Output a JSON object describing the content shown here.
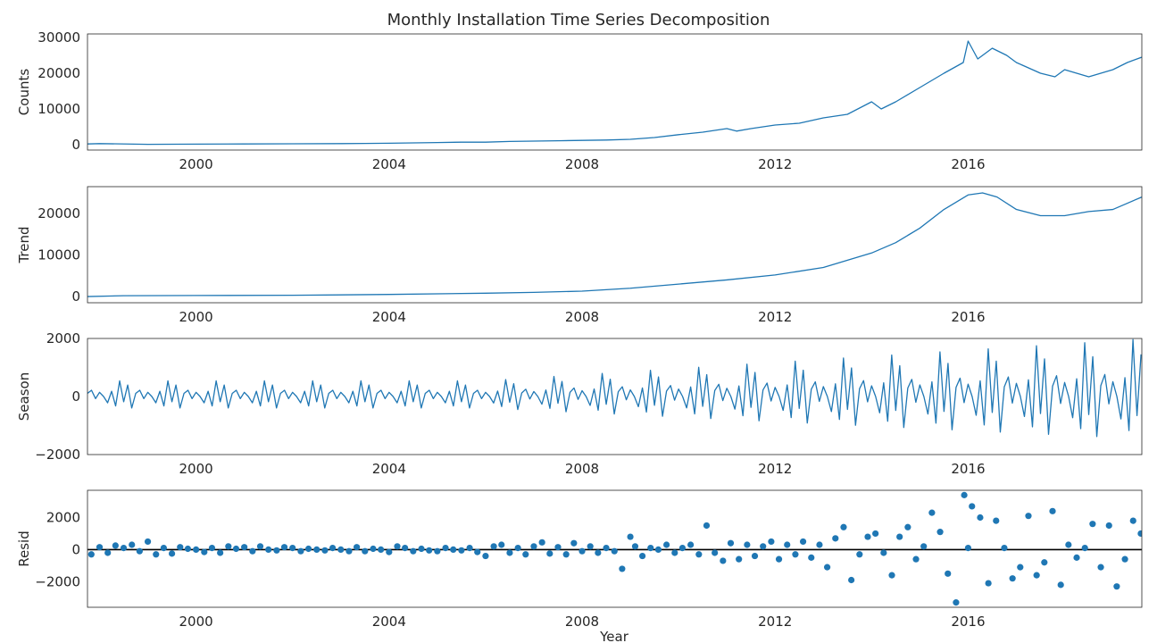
{
  "figure": {
    "title": "Monthly Installation Time Series Decomposition",
    "xlabel": "Year",
    "line_color": "#1f77b4",
    "zero_line_color": "#000000"
  },
  "chart_data": [
    {
      "type": "line",
      "ylabel": "Counts",
      "xlim": [
        1997.75,
        2019.6
      ],
      "ylim": [
        -1500,
        31000
      ],
      "yticks": [
        0,
        10000,
        20000,
        30000
      ],
      "ytick_labels": [
        "0",
        "10000",
        "20000",
        "30000"
      ],
      "xticks": [
        2000,
        2004,
        2008,
        2012,
        2016
      ],
      "xtick_labels": [
        "2000",
        "2004",
        "2008",
        "2012",
        "2016"
      ],
      "grid": false,
      "series": [
        {
          "x": [
            1997.75,
            1998.0,
            1999.0,
            2000.0,
            2001.0,
            2002.0,
            2003.0,
            2003.5,
            2004.0,
            2004.5,
            2005.0,
            2005.5,
            2006.0,
            2006.5,
            2007.0,
            2007.5,
            2008.0,
            2008.5,
            2009.0,
            2009.5,
            2010.0,
            2010.5,
            2011.0,
            2011.2,
            2011.5,
            2012.0,
            2012.5,
            2013.0,
            2013.5,
            2014.0,
            2014.2,
            2014.5,
            2015.0,
            2015.5,
            2015.9,
            2016.0,
            2016.2,
            2016.5,
            2016.8,
            2017.0,
            2017.5,
            2017.8,
            2018.0,
            2018.5,
            2019.0,
            2019.3,
            2019.6
          ],
          "y": [
            200,
            300,
            100,
            150,
            200,
            250,
            300,
            350,
            400,
            500,
            600,
            700,
            700,
            900,
            1000,
            1100,
            1200,
            1300,
            1500,
            2000,
            2800,
            3500,
            4500,
            3800,
            4500,
            5500,
            6000,
            7500,
            8500,
            12000,
            10000,
            12000,
            16000,
            20000,
            23000,
            29000,
            24000,
            27000,
            25000,
            23000,
            20000,
            19000,
            21000,
            19000,
            21000,
            23000,
            24500
          ]
        }
      ]
    },
    {
      "type": "line",
      "ylabel": "Trend",
      "xlim": [
        1997.75,
        2019.6
      ],
      "ylim": [
        -1500,
        26500
      ],
      "yticks": [
        0,
        10000,
        20000
      ],
      "ytick_labels": [
        "0",
        "10000",
        "20000"
      ],
      "xticks": [
        2000,
        2004,
        2008,
        2012,
        2016
      ],
      "xtick_labels": [
        "2000",
        "2004",
        "2008",
        "2012",
        "2016"
      ],
      "grid": false,
      "series": [
        {
          "x": [
            1997.75,
            1998.5,
            2000.0,
            2002.0,
            2004.0,
            2006.0,
            2007.0,
            2008.0,
            2009.0,
            2010.0,
            2011.0,
            2012.0,
            2013.0,
            2014.0,
            2014.5,
            2015.0,
            2015.5,
            2016.0,
            2016.3,
            2016.6,
            2017.0,
            2017.5,
            2018.0,
            2018.5,
            2019.0,
            2019.6
          ],
          "y": [
            0,
            200,
            250,
            300,
            500,
            800,
            1000,
            1300,
            2000,
            3000,
            4000,
            5200,
            7000,
            10500,
            13000,
            16500,
            21000,
            24500,
            25000,
            24000,
            21000,
            19500,
            19500,
            20500,
            21000,
            24000
          ]
        }
      ]
    },
    {
      "type": "line",
      "ylabel": "Season",
      "xlim": [
        1997.75,
        2019.6
      ],
      "ylim": [
        -2000,
        2000
      ],
      "yticks": [
        -2000,
        0,
        2000
      ],
      "ytick_labels": [
        "−2000",
        "0",
        "2000"
      ],
      "xticks": [
        2000,
        2004,
        2008,
        2012,
        2016
      ],
      "xtick_labels": [
        "2000",
        "2004",
        "2008",
        "2012",
        "2016"
      ],
      "grid": false,
      "monthly_pattern": [
        0.12,
        0.24,
        -0.08,
        0.16,
        0.0,
        -0.24,
        0.2,
        -0.36,
        0.6,
        -0.2,
        0.44,
        -0.44
      ],
      "start_amplitude": 900,
      "end_amplitude": 3300,
      "amplitude_growth_start_year": 2006,
      "series": [
        {
          "x": [
            1997.75,
            2019.6
          ],
          "y": [
            0,
            0
          ]
        }
      ]
    },
    {
      "type": "scatter",
      "ylabel": "Resid",
      "xlim": [
        1997.75,
        2019.6
      ],
      "ylim": [
        -3600,
        3700
      ],
      "yticks": [
        -2000,
        0,
        2000
      ],
      "ytick_labels": [
        "−2000",
        "0",
        "2000"
      ],
      "xticks": [
        2000,
        2004,
        2008,
        2012,
        2016
      ],
      "xtick_labels": [
        "2000",
        "2004",
        "2008",
        "2012",
        "2016"
      ],
      "grid": false,
      "zero_line": true,
      "series": [
        {
          "x": [
            1997.83,
            1998.0,
            1998.17,
            1998.33,
            1998.5,
            1998.67,
            1998.83,
            1999.0,
            1999.17,
            1999.33,
            1999.5,
            1999.67,
            1999.83,
            2000.0,
            2000.17,
            2000.33,
            2000.5,
            2000.67,
            2000.83,
            2001.0,
            2001.17,
            2001.33,
            2001.5,
            2001.67,
            2001.83,
            2002.0,
            2002.17,
            2002.33,
            2002.5,
            2002.67,
            2002.83,
            2003.0,
            2003.17,
            2003.33,
            2003.5,
            2003.67,
            2003.83,
            2004.0,
            2004.17,
            2004.33,
            2004.5,
            2004.67,
            2004.83,
            2005.0,
            2005.17,
            2005.33,
            2005.5,
            2005.67,
            2005.83,
            2006.0,
            2006.17,
            2006.33,
            2006.5,
            2006.67,
            2006.83,
            2007.0,
            2007.17,
            2007.33,
            2007.5,
            2007.67,
            2007.83,
            2008.0,
            2008.17,
            2008.33,
            2008.5,
            2008.67,
            2008.83,
            2009.0,
            2009.1,
            2009.25,
            2009.42,
            2009.58,
            2009.75,
            2009.92,
            2010.08,
            2010.25,
            2010.42,
            2010.58,
            2010.75,
            2010.92,
            2011.08,
            2011.25,
            2011.42,
            2011.58,
            2011.75,
            2011.92,
            2012.08,
            2012.25,
            2012.42,
            2012.58,
            2012.75,
            2012.92,
            2013.08,
            2013.25,
            2013.42,
            2013.58,
            2013.75,
            2013.92,
            2014.08,
            2014.25,
            2014.42,
            2014.58,
            2014.75,
            2014.92,
            2015.08,
            2015.25,
            2015.42,
            2015.58,
            2015.75,
            2015.92,
            2016.0,
            2016.08,
            2016.25,
            2016.42,
            2016.58,
            2016.75,
            2016.92,
            2017.08,
            2017.25,
            2017.42,
            2017.58,
            2017.75,
            2017.92,
            2018.08,
            2018.25,
            2018.42,
            2018.58,
            2018.75,
            2018.92,
            2019.08,
            2019.25,
            2019.42,
            2019.58
          ],
          "y": [
            -300,
            150,
            -200,
            250,
            100,
            300,
            -100,
            500,
            -300,
            100,
            -250,
            150,
            50,
            0,
            -150,
            100,
            -200,
            200,
            50,
            150,
            -100,
            200,
            0,
            -50,
            150,
            100,
            -100,
            50,
            0,
            -50,
            100,
            0,
            -100,
            150,
            -100,
            50,
            0,
            -150,
            200,
            100,
            -100,
            50,
            -50,
            -100,
            100,
            0,
            -50,
            100,
            -150,
            -400,
            200,
            300,
            -200,
            100,
            -300,
            200,
            450,
            -250,
            150,
            -300,
            400,
            -100,
            200,
            -200,
            100,
            -100,
            -1200,
            800,
            200,
            -400,
            100,
            0,
            300,
            -200,
            100,
            300,
            -300,
            1500,
            -200,
            -700,
            400,
            -600,
            300,
            -400,
            200,
            500,
            -600,
            300,
            -300,
            500,
            -500,
            300,
            -1100,
            700,
            1400,
            -1900,
            -300,
            800,
            1000,
            -200,
            -1600,
            800,
            1400,
            -600,
            200,
            2300,
            1100,
            -1500,
            -3300,
            3400,
            100,
            2700,
            2000,
            -2100,
            1800,
            100,
            -1800,
            -1100,
            2100,
            -1600,
            -800,
            2400,
            -2200,
            300,
            -500,
            100,
            1600,
            -1100,
            1500,
            -2300,
            -600,
            1800,
            1000
          ],
          "marker_color": "#1f77b4"
        }
      ]
    }
  ]
}
